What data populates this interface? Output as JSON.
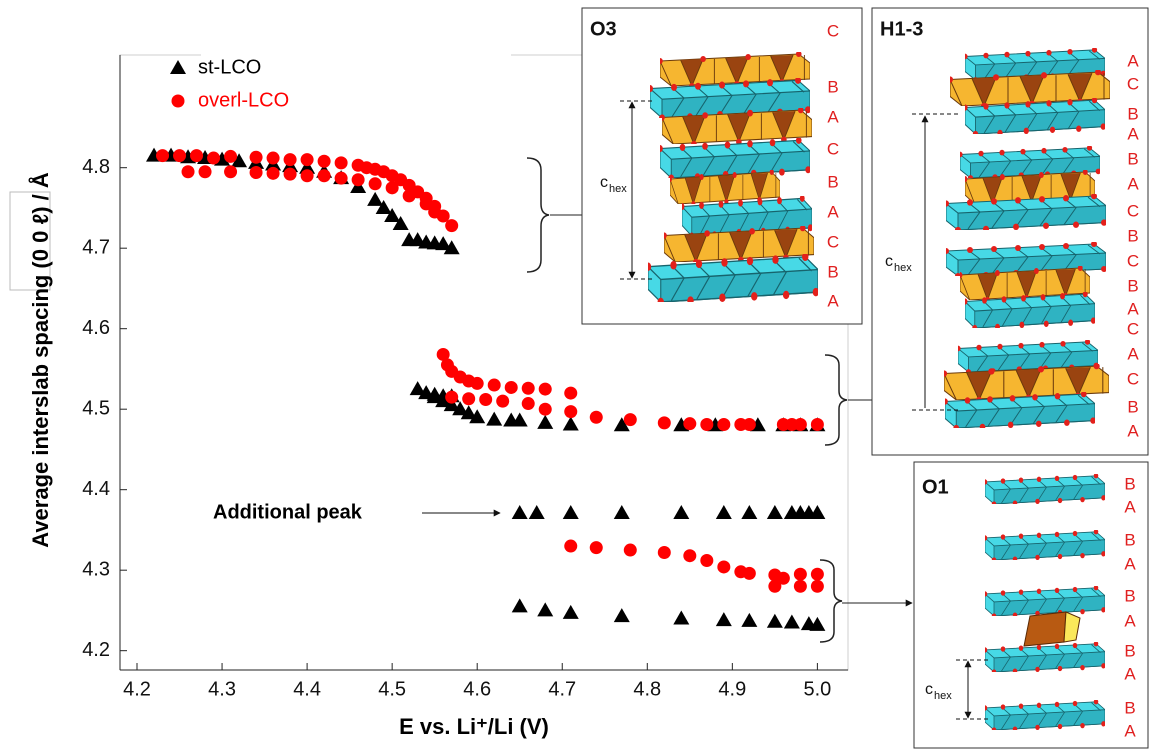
{
  "chart_data": {
    "type": "scatter",
    "x_label": "E vs. Li⁺/Li (V)",
    "y_label": "Average interslab spacing (0 0 ℓ) / Å",
    "annotation": "Additional peak",
    "xlim": [
      4.18,
      5.036
    ],
    "ylim": [
      4.176,
      4.94
    ],
    "xticks": [
      4.2,
      4.3,
      4.4,
      4.5,
      4.6,
      4.7,
      4.8,
      4.9,
      {
        "value": 5,
        "label": "5.0"
      }
    ],
    "yticks": [
      4.2,
      4.3,
      4.4,
      4.5,
      4.6,
      4.7,
      4.8
    ],
    "legend": "upper left",
    "series": [
      {
        "name": "st-LCO",
        "color": "#000000",
        "marker": "triangle",
        "x": [
          4.22,
          4.24,
          4.26,
          4.28,
          4.3,
          4.32,
          4.34,
          4.36,
          4.38,
          4.4,
          4.42,
          4.44,
          4.46,
          4.48,
          4.49,
          4.5,
          4.51,
          4.52,
          4.53,
          4.54,
          4.55,
          4.56,
          4.57,
          4.53,
          4.54,
          4.55,
          4.56,
          4.57,
          4.58,
          4.59,
          4.6,
          4.62,
          4.64,
          4.65,
          4.68,
          4.71,
          4.77,
          4.84,
          4.88,
          4.93,
          4.96,
          4.98,
          5.0,
          4.55,
          4.56,
          4.57,
          4.65,
          4.67,
          4.71,
          4.77,
          4.84,
          4.89,
          4.92,
          4.95,
          4.97,
          4.98,
          4.99,
          5.0,
          4.65,
          4.68,
          4.71,
          4.77,
          4.84,
          4.89,
          4.92,
          4.95,
          4.97,
          4.99,
          5.0
        ],
        "y": [
          4.815,
          4.815,
          4.813,
          4.812,
          4.81,
          4.808,
          4.806,
          4.804,
          4.802,
          4.8,
          4.795,
          4.787,
          4.776,
          4.76,
          4.75,
          4.74,
          4.73,
          4.71,
          4.71,
          4.707,
          4.706,
          4.705,
          4.7,
          4.525,
          4.52,
          4.515,
          4.51,
          4.505,
          4.5,
          4.495,
          4.49,
          4.487,
          4.486,
          4.486,
          4.483,
          4.481,
          4.48,
          4.48,
          4.48,
          4.48,
          4.48,
          4.48,
          4.48,
          4.518,
          4.516,
          4.516,
          4.371,
          4.371,
          4.371,
          4.371,
          4.371,
          4.371,
          4.371,
          4.371,
          4.371,
          4.371,
          4.371,
          4.371,
          4.255,
          4.25,
          4.247,
          4.243,
          4.24,
          4.238,
          4.237,
          4.236,
          4.235,
          4.233,
          4.232
        ]
      },
      {
        "name": "overl-LCO",
        "color": "#ff0000",
        "marker": "circle",
        "x": [
          4.23,
          4.25,
          4.27,
          4.29,
          4.31,
          4.34,
          4.36,
          4.38,
          4.4,
          4.42,
          4.44,
          4.46,
          4.47,
          4.48,
          4.49,
          4.5,
          4.51,
          4.52,
          4.53,
          4.54,
          4.55,
          4.26,
          4.28,
          4.31,
          4.34,
          4.36,
          4.38,
          4.4,
          4.42,
          4.44,
          4.46,
          4.48,
          4.5,
          4.52,
          4.54,
          4.55,
          4.56,
          4.57,
          4.56,
          4.565,
          4.57,
          4.58,
          4.59,
          4.6,
          4.62,
          4.64,
          4.66,
          4.68,
          4.71,
          4.57,
          4.59,
          4.61,
          4.63,
          4.66,
          4.68,
          4.71,
          4.74,
          4.78,
          4.82,
          4.85,
          4.87,
          4.89,
          4.91,
          4.92,
          4.96,
          4.97,
          4.98,
          5.0,
          4.71,
          4.74,
          4.78,
          4.82,
          4.85,
          4.87,
          4.89,
          4.91,
          4.92,
          4.95,
          4.96,
          4.98,
          5.0,
          4.95,
          4.98,
          5.0
        ],
        "y": [
          4.815,
          4.815,
          4.815,
          4.812,
          4.814,
          4.813,
          4.812,
          4.81,
          4.81,
          4.808,
          4.806,
          4.803,
          4.8,
          4.798,
          4.795,
          4.79,
          4.785,
          4.778,
          4.77,
          4.762,
          4.752,
          4.795,
          4.795,
          4.795,
          4.794,
          4.793,
          4.792,
          4.79,
          4.79,
          4.787,
          4.785,
          4.78,
          4.775,
          4.765,
          4.755,
          4.745,
          4.74,
          4.728,
          4.568,
          4.555,
          4.547,
          4.54,
          4.535,
          4.532,
          4.53,
          4.527,
          4.526,
          4.525,
          4.52,
          4.515,
          4.513,
          4.512,
          4.51,
          4.507,
          4.5,
          4.497,
          4.49,
          4.487,
          4.483,
          4.482,
          4.481,
          4.481,
          4.481,
          4.481,
          4.481,
          4.481,
          4.481,
          4.481,
          4.33,
          4.328,
          4.325,
          4.322,
          4.318,
          4.312,
          4.304,
          4.298,
          4.296,
          4.294,
          4.29,
          4.295,
          4.295,
          4.28,
          4.28,
          4.28
        ]
      }
    ]
  },
  "insets": [
    {
      "title": "O3",
      "c_label": "c",
      "c_sub": "hex",
      "layers": [
        "C",
        "B",
        "A",
        "C",
        "B",
        "A",
        "C",
        "B",
        "A"
      ]
    },
    {
      "title": "H1-3",
      "c_label": "c",
      "c_sub": "hex",
      "layers": [
        "A",
        "C",
        "B",
        "A",
        "B",
        "A",
        "C",
        "B",
        "C",
        "B",
        "A",
        "C",
        "A",
        "C",
        "B",
        "A"
      ]
    },
    {
      "title": "O1",
      "c_label": "c",
      "c_sub": "hex",
      "layers": [
        "B",
        "A",
        "B",
        "A",
        "B",
        "A",
        "B",
        "A",
        "B",
        "A"
      ]
    }
  ]
}
